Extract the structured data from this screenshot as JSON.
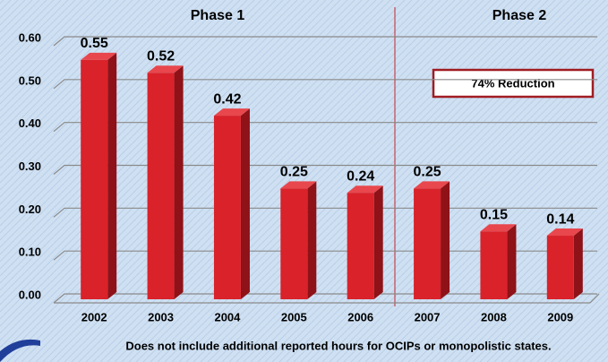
{
  "chart_data": {
    "type": "bar3d",
    "categories": [
      "2002",
      "2003",
      "2004",
      "2005",
      "2006",
      "2007",
      "2008",
      "2009"
    ],
    "values": [
      0.55,
      0.52,
      0.42,
      0.25,
      0.24,
      0.25,
      0.15,
      0.14
    ],
    "color": "#d9222a",
    "ylim": [
      0,
      0.6
    ],
    "yticks": [
      {
        "value": 0,
        "label": "0.00"
      },
      {
        "value": 0.1,
        "label": "0.10"
      },
      {
        "value": 0.2,
        "label": "0.20"
      },
      {
        "value": 0.3,
        "label": "0.30"
      },
      {
        "value": 0.4,
        "label": "0.40"
      },
      {
        "value": 0.5,
        "label": "0.50"
      },
      {
        "value": 0.6,
        "label": "0.60"
      }
    ],
    "grid": true,
    "annotations": {
      "phase1": "Phase 1",
      "phase2": "Phase 2",
      "reduction": "74% Reduction",
      "footnote": "Does not include additional reported hours for OCIPs or monopolistic states."
    }
  }
}
